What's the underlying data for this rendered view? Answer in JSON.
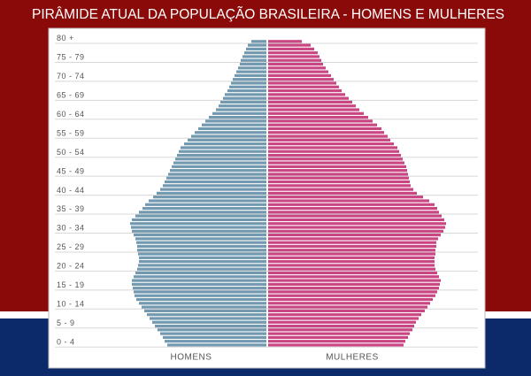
{
  "chart_data": {
    "type": "pyramid",
    "title": "PIRÂMIDE ATUAL DA POPULAÇÃO BRASILEIRA - HOMENS E MULHERES",
    "categories": [
      "0 - 4",
      null,
      null,
      null,
      null,
      "5 - 9",
      null,
      null,
      null,
      null,
      "10 - 14",
      null,
      null,
      null,
      null,
      "15 - 19",
      null,
      null,
      null,
      null,
      "20 - 24",
      null,
      null,
      null,
      null,
      "25 - 29",
      null,
      null,
      null,
      null,
      "30 - 34",
      null,
      null,
      null,
      null,
      "35 - 39",
      null,
      null,
      null,
      null,
      "40 - 44",
      null,
      null,
      null,
      null,
      "45 - 49",
      null,
      null,
      null,
      null,
      "50 - 54",
      null,
      null,
      null,
      null,
      "55 - 59",
      null,
      null,
      null,
      null,
      "60 - 64",
      null,
      null,
      null,
      null,
      "65 - 69",
      null,
      null,
      null,
      null,
      "70 - 74",
      null,
      null,
      null,
      null,
      "75 - 79",
      null,
      null,
      null,
      null,
      "80 +"
    ],
    "xlim": [
      0,
      210
    ],
    "series": [
      {
        "name": "HOMENS",
        "color": "#7299b0",
        "values": [
          112,
          115,
          117,
          120,
          123,
          126,
          129,
          132,
          135,
          138,
          141,
          144,
          147,
          149,
          150,
          151,
          152,
          152,
          150,
          148,
          146,
          145,
          144,
          144,
          145,
          146,
          146,
          147,
          148,
          150,
          152,
          153,
          154,
          152,
          148,
          144,
          140,
          137,
          133,
          128,
          124,
          120,
          117,
          115,
          113,
          111,
          109,
          107,
          105,
          103,
          101,
          99,
          97,
          93,
          89,
          85,
          81,
          77,
          73,
          69,
          65,
          61,
          57,
          54,
          52,
          49,
          47,
          44,
          42,
          40,
          38,
          36,
          34,
          32,
          30,
          29,
          27,
          25,
          23,
          21,
          17
        ]
      },
      {
        "name": "MULHERES",
        "color": "#c94683",
        "values": [
          153,
          155,
          158,
          160,
          163,
          165,
          167,
          170,
          173,
          177,
          180,
          183,
          186,
          189,
          191,
          193,
          194,
          195,
          193,
          191,
          189,
          188,
          188,
          188,
          189,
          189,
          190,
          190,
          192,
          195,
          198,
          200,
          201,
          199,
          196,
          193,
          191,
          188,
          182,
          175,
          168,
          164,
          161,
          160,
          159,
          158,
          157,
          156,
          154,
          152,
          150,
          148,
          146,
          142,
          138,
          135,
          131,
          128,
          123,
          118,
          113,
          108,
          103,
          99,
          95,
          91,
          87,
          83,
          80,
          77,
          74,
          71,
          68,
          65,
          62,
          60,
          58,
          56,
          52,
          48,
          38
        ]
      }
    ]
  }
}
